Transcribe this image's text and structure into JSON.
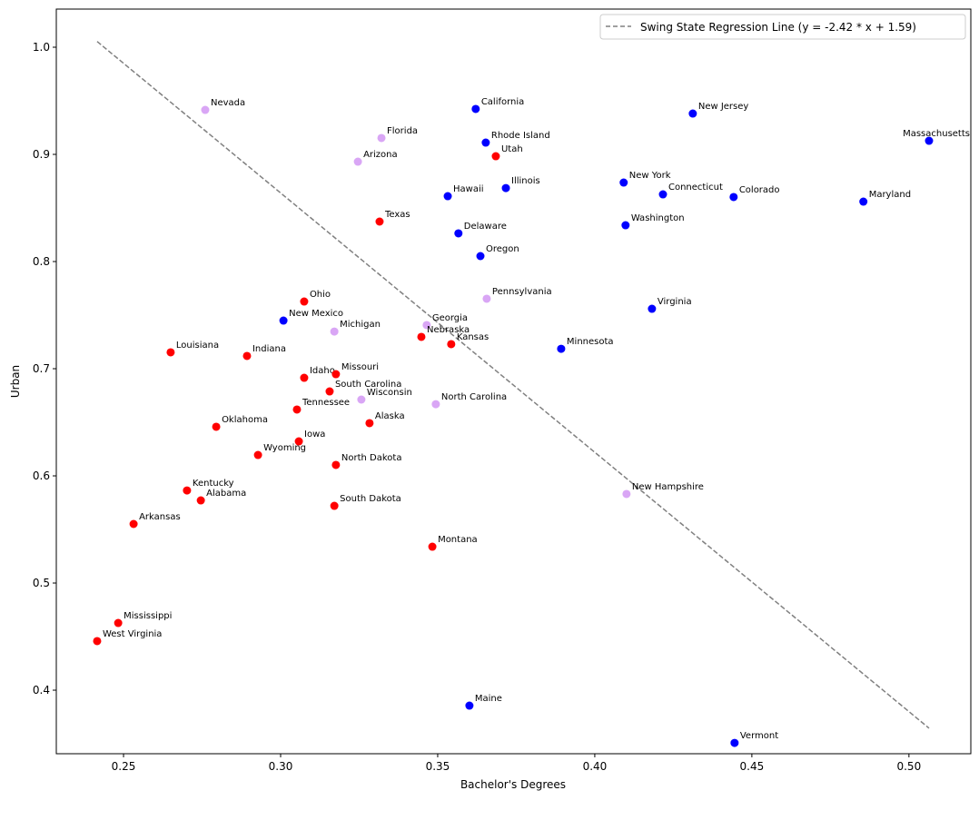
{
  "chart_data": {
    "type": "scatter",
    "title": "",
    "xlabel": "Bachelor's Degrees",
    "ylabel": "Urban",
    "xlim": [
      0.2286,
      0.5197
    ],
    "ylim": [
      0.3407,
      1.0356
    ],
    "xticks": [
      0.25,
      0.3,
      0.35,
      0.4,
      0.45,
      0.5
    ],
    "xtick_labels": [
      "0.25",
      "0.30",
      "0.35",
      "0.40",
      "0.45",
      "0.50"
    ],
    "yticks": [
      0.4,
      0.5,
      0.6,
      0.7,
      0.8,
      0.9,
      1.0
    ],
    "ytick_labels": [
      "0.4",
      "0.5",
      "0.6",
      "0.7",
      "0.8",
      "0.9",
      "1.0"
    ],
    "grid": false,
    "legend": {
      "position": "top-right",
      "entries": [
        "Swing State Regression Line (y = -2.42 * x + 1.59)"
      ]
    },
    "colors": {
      "blue": "#0000ff",
      "red": "#ff0000",
      "swing": "#d9a6f5",
      "line": "#808080"
    },
    "regression": {
      "slope": -2.42,
      "intercept": 1.59,
      "x_range": [
        0.2416,
        0.5064
      ]
    },
    "points": [
      {
        "label": "Nevada",
        "x": 0.276,
        "y": 0.9415,
        "group": "swing"
      },
      {
        "label": "California",
        "x": 0.3621,
        "y": 0.9424,
        "group": "blue"
      },
      {
        "label": "New Jersey",
        "x": 0.4312,
        "y": 0.9381,
        "group": "blue"
      },
      {
        "label": "Florida",
        "x": 0.3321,
        "y": 0.9153,
        "group": "swing"
      },
      {
        "label": "Massachusetts",
        "x": 0.5064,
        "y": 0.9127,
        "group": "blue"
      },
      {
        "label": "Rhode Island",
        "x": 0.3653,
        "y": 0.911,
        "group": "blue"
      },
      {
        "label": "Utah",
        "x": 0.3685,
        "y": 0.8983,
        "group": "red"
      },
      {
        "label": "Arizona",
        "x": 0.3246,
        "y": 0.8932,
        "group": "swing"
      },
      {
        "label": "Illinois",
        "x": 0.3717,
        "y": 0.8686,
        "group": "blue"
      },
      {
        "label": "New York",
        "x": 0.4092,
        "y": 0.8737,
        "group": "blue"
      },
      {
        "label": "Connecticut",
        "x": 0.4217,
        "y": 0.8627,
        "group": "blue"
      },
      {
        "label": "Colorado",
        "x": 0.4442,
        "y": 0.8602,
        "group": "blue"
      },
      {
        "label": "Maryland",
        "x": 0.4855,
        "y": 0.8559,
        "group": "blue"
      },
      {
        "label": "Hawaii",
        "x": 0.3532,
        "y": 0.861,
        "group": "blue"
      },
      {
        "label": "Texas",
        "x": 0.3315,
        "y": 0.8373,
        "group": "red"
      },
      {
        "label": "Washington",
        "x": 0.4098,
        "y": 0.8339,
        "group": "blue"
      },
      {
        "label": "Delaware",
        "x": 0.3566,
        "y": 0.8263,
        "group": "blue"
      },
      {
        "label": "Oregon",
        "x": 0.3636,
        "y": 0.8051,
        "group": "blue"
      },
      {
        "label": "Ohio",
        "x": 0.3075,
        "y": 0.7627,
        "group": "red"
      },
      {
        "label": "Pennsylvania",
        "x": 0.3656,
        "y": 0.7653,
        "group": "swing"
      },
      {
        "label": "Virginia",
        "x": 0.4182,
        "y": 0.7559,
        "group": "blue"
      },
      {
        "label": "New Mexico",
        "x": 0.3009,
        "y": 0.7449,
        "group": "blue"
      },
      {
        "label": "Georgia",
        "x": 0.3465,
        "y": 0.7407,
        "group": "swing"
      },
      {
        "label": "Michigan",
        "x": 0.3171,
        "y": 0.7347,
        "group": "swing"
      },
      {
        "label": "Nebraska",
        "x": 0.3448,
        "y": 0.7297,
        "group": "red"
      },
      {
        "label": "Kansas",
        "x": 0.3543,
        "y": 0.7229,
        "group": "red"
      },
      {
        "label": "Minnesota",
        "x": 0.3893,
        "y": 0.7186,
        "group": "blue"
      },
      {
        "label": "Louisiana",
        "x": 0.265,
        "y": 0.7153,
        "group": "red"
      },
      {
        "label": "Indiana",
        "x": 0.2893,
        "y": 0.7119,
        "group": "red"
      },
      {
        "label": "Idaho",
        "x": 0.3075,
        "y": 0.6915,
        "group": "red"
      },
      {
        "label": "Missouri",
        "x": 0.3176,
        "y": 0.6949,
        "group": "red"
      },
      {
        "label": "South Carolina",
        "x": 0.3156,
        "y": 0.6788,
        "group": "red"
      },
      {
        "label": "Wisconsin",
        "x": 0.3257,
        "y": 0.6712,
        "group": "swing"
      },
      {
        "label": "North Carolina",
        "x": 0.3494,
        "y": 0.6669,
        "group": "swing"
      },
      {
        "label": "Tennessee",
        "x": 0.3052,
        "y": 0.6619,
        "group": "red"
      },
      {
        "label": "Alaska",
        "x": 0.3283,
        "y": 0.6492,
        "group": "red"
      },
      {
        "label": "Oklahoma",
        "x": 0.2795,
        "y": 0.6458,
        "group": "red"
      },
      {
        "label": "Iowa",
        "x": 0.3058,
        "y": 0.6322,
        "group": "red"
      },
      {
        "label": "Wyoming",
        "x": 0.2928,
        "y": 0.6195,
        "group": "red"
      },
      {
        "label": "North Dakota",
        "x": 0.3176,
        "y": 0.6102,
        "group": "red"
      },
      {
        "label": "Kentucky",
        "x": 0.2702,
        "y": 0.5864,
        "group": "red"
      },
      {
        "label": "Alabama",
        "x": 0.2746,
        "y": 0.5771,
        "group": "red"
      },
      {
        "label": "South Dakota",
        "x": 0.3171,
        "y": 0.572,
        "group": "red"
      },
      {
        "label": "New Hampshire",
        "x": 0.4101,
        "y": 0.5831,
        "group": "swing"
      },
      {
        "label": "Arkansas",
        "x": 0.2532,
        "y": 0.5551,
        "group": "red"
      },
      {
        "label": "Montana",
        "x": 0.3483,
        "y": 0.5339,
        "group": "red"
      },
      {
        "label": "Mississippi",
        "x": 0.2483,
        "y": 0.4627,
        "group": "red"
      },
      {
        "label": "West Virginia",
        "x": 0.2416,
        "y": 0.4458,
        "group": "red"
      },
      {
        "label": "Maine",
        "x": 0.3601,
        "y": 0.3856,
        "group": "blue"
      },
      {
        "label": "Vermont",
        "x": 0.4445,
        "y": 0.3508,
        "group": "blue"
      }
    ]
  }
}
